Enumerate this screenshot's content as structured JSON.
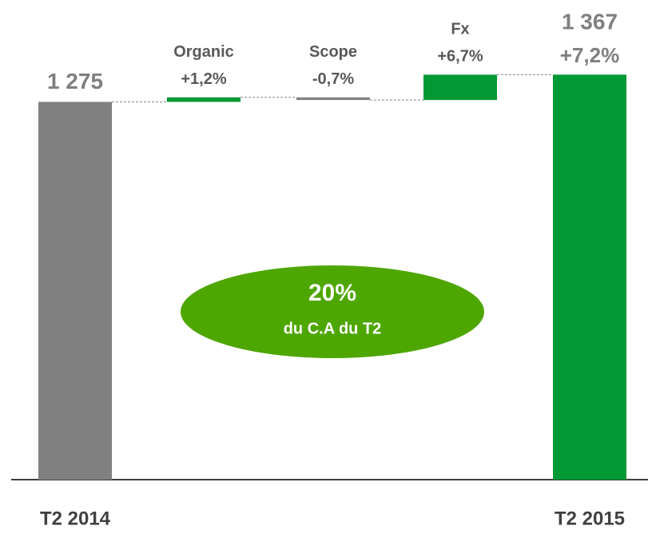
{
  "chart_data": {
    "type": "waterfall",
    "categories": [
      "T2 2014",
      "Organic",
      "Scope",
      "Fx",
      "T2 2015"
    ],
    "values": [
      1275,
      15.3,
      -8.9,
      85.4,
      1367
    ],
    "value_labels": [
      "1 275",
      null,
      null,
      null,
      "1 367"
    ],
    "percent_changes": [
      null,
      1.2,
      -0.7,
      6.7,
      7.2
    ],
    "percent_labels": [
      null,
      "+1,2%",
      "-0,7%",
      "+6,7%",
      "+7,2%"
    ],
    "colors": [
      "#808080",
      "#009933",
      "#808080",
      "#009933",
      "#009933"
    ],
    "ylim": [
      0,
      1600
    ],
    "annotation": {
      "value": "20%",
      "text": "du C.A du T2",
      "color": "#4ea600"
    }
  }
}
